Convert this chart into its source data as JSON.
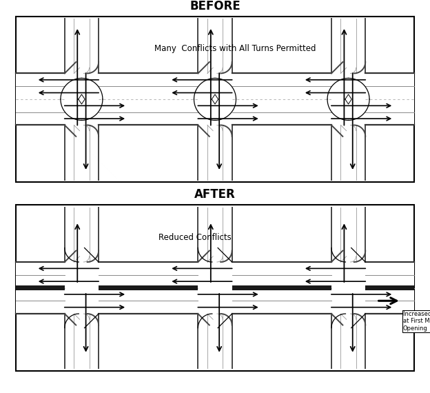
{
  "title_before": "BEFORE",
  "title_after": "AFTER",
  "label_before": "Many  Conflicts with All Turns Permitted",
  "label_after": "Reduced Conflicts",
  "label_increased": "Increased Traffic\nat First Median\nOpening",
  "bg_color": "#ffffff",
  "fig_width": 6.24,
  "fig_height": 5.7
}
